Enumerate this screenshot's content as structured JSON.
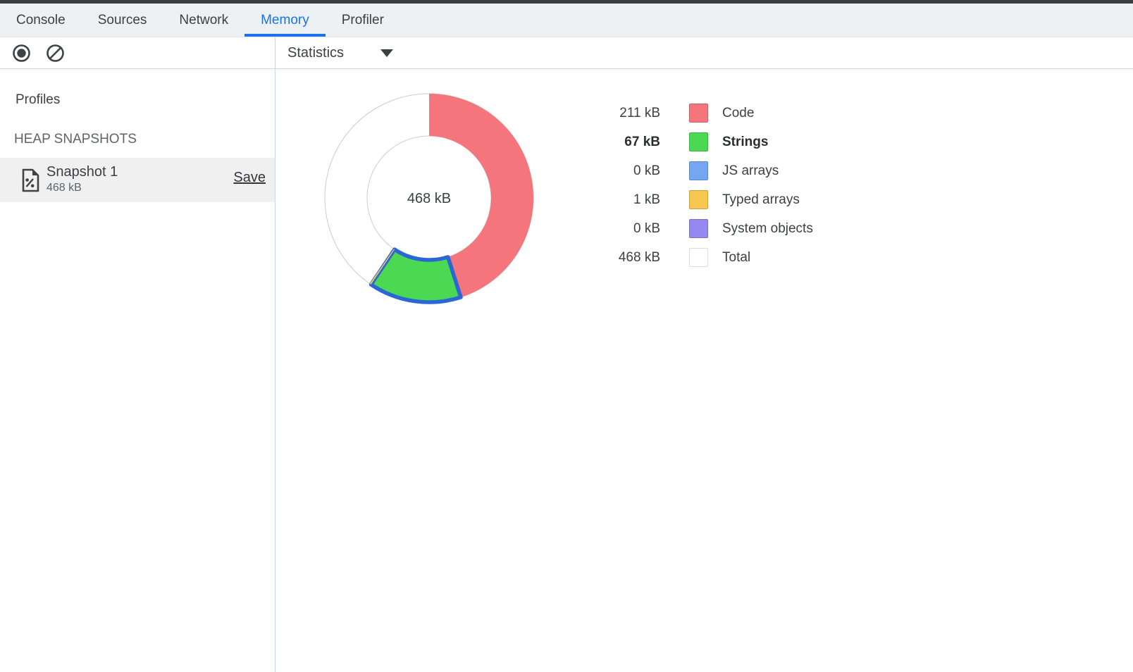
{
  "tabs": [
    {
      "label": "Console",
      "active": false
    },
    {
      "label": "Sources",
      "active": false
    },
    {
      "label": "Network",
      "active": false
    },
    {
      "label": "Memory",
      "active": true
    },
    {
      "label": "Profiler",
      "active": false
    }
  ],
  "toolbar": {
    "record_icon": "record-icon",
    "clear_icon": "clear-icon",
    "view_selector": {
      "selected": "Statistics",
      "dropdown_icon": "triangle-down-icon"
    }
  },
  "sidebar": {
    "profiles_heading": "Profiles",
    "section_heading": "HEAP SNAPSHOTS",
    "snapshot": {
      "icon": "heap-snapshot-document-icon",
      "title": "Snapshot 1",
      "size": "468 kB",
      "save_label": "Save",
      "selected": true
    }
  },
  "chart": {
    "center_label": "468 kB"
  },
  "chart_data": {
    "type": "pie",
    "donut": true,
    "categories": [
      "Code",
      "Strings",
      "JS arrays",
      "Typed arrays",
      "System objects"
    ],
    "values_kb": [
      211,
      67,
      0,
      1,
      0
    ],
    "total_kb": 468,
    "unallocated_kb": 189,
    "center_label": "468 kB",
    "colors": [
      "#F4757C",
      "#4BD853",
      "#74A6F2",
      "#F6C64F",
      "#9589EF"
    ],
    "selected_category": "Strings",
    "selection_outline_color": "#2A67D5",
    "start_angle_deg": 0,
    "direction": "clockwise",
    "legend_position": "right",
    "ring_outline_color": "#CCCCCC"
  },
  "legend": {
    "rows": [
      {
        "value": "211 kB",
        "label": "Code",
        "color": "#F4757C",
        "bold": false
      },
      {
        "value": "67 kB",
        "label": "Strings",
        "color": "#4BD853",
        "bold": true
      },
      {
        "value": "0 kB",
        "label": "JS arrays",
        "color": "#74A6F2",
        "bold": false
      },
      {
        "value": "1 kB",
        "label": "Typed arrays",
        "color": "#F6C64F",
        "bold": false
      },
      {
        "value": "0 kB",
        "label": "System objects",
        "color": "#9589EF",
        "bold": false
      },
      {
        "value": "468 kB",
        "label": "Total",
        "color": "#FFFFFF",
        "bold": false
      }
    ]
  },
  "colors": {
    "accent_blue": "#1A73E8",
    "top_stripe": "#3A3D40",
    "tab_bar_bg": "#EEF1F4",
    "divider": "#C9D6E8",
    "selected_row_bg": "#F0F0F1",
    "icon_gray": "#3F4245",
    "text_primary": "#3C4043",
    "text_secondary": "#5F6368"
  }
}
